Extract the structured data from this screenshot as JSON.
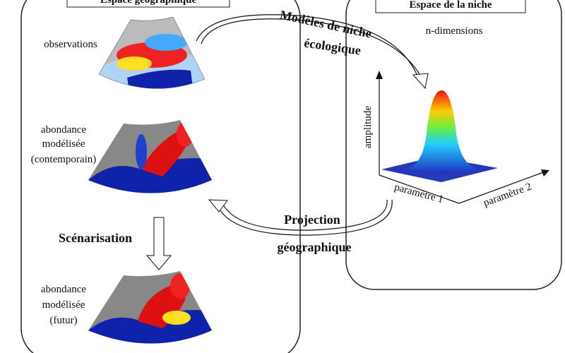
{
  "panels": {
    "geographic": {
      "title": "Espace géographique"
    },
    "niche": {
      "title": "Espace de la niche",
      "subtitle": "n-dimensions"
    }
  },
  "maps": [
    {
      "label": [
        "observations"
      ]
    },
    {
      "label": [
        "abondance",
        "modélisée",
        "(contemporain)"
      ]
    },
    {
      "label": [
        "abondance",
        "modélisée",
        "(futur)"
      ]
    }
  ],
  "arrows": {
    "niche_model": [
      "Modèles de niche",
      "écologique"
    ],
    "projection": [
      "Projection",
      "géographique"
    ],
    "scenario": "Scénarisation"
  },
  "axes": {
    "y": "amplitude",
    "x1": "paramètre 1",
    "x2": "paramètre 2"
  }
}
